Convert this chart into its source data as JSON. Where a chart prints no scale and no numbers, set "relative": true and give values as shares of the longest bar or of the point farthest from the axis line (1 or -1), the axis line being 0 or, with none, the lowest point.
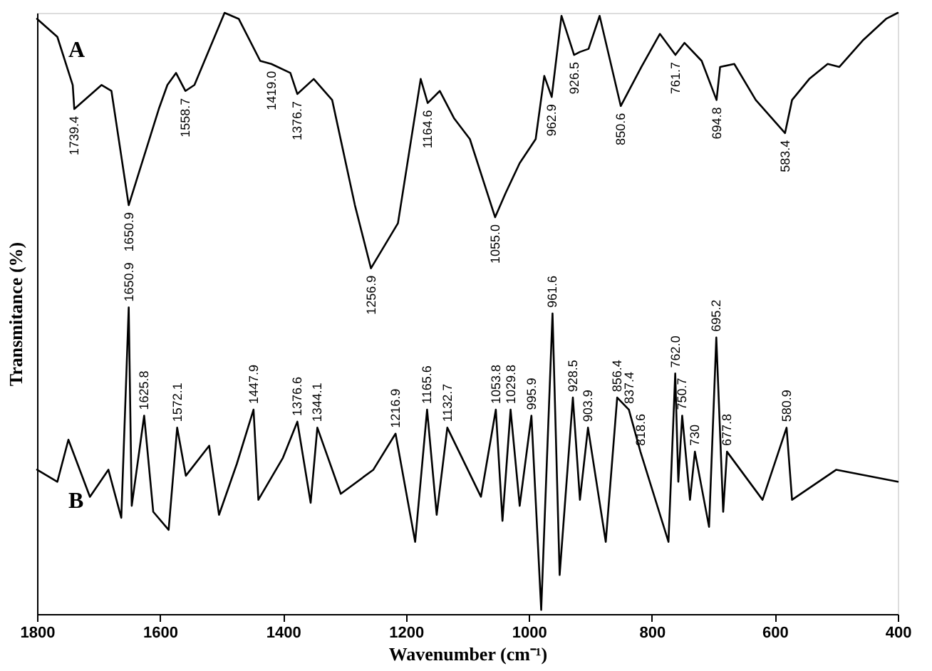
{
  "chart_data": {
    "type": "line",
    "relative": true,
    "xlabel": "Wavenumber (cm⁻¹)",
    "ylabel": "Transmitance (%)",
    "xlim": [
      1800,
      400
    ],
    "xticks": [
      {
        "value": 1800,
        "label": "1800"
      },
      {
        "value": 1600,
        "label": "1600"
      },
      {
        "value": 1400,
        "label": "1400"
      },
      {
        "value": 1200,
        "label": "1200"
      },
      {
        "value": 1000,
        "label": "1000"
      },
      800,
      600,
      400
    ],
    "tick_labels": "x",
    "grid": false,
    "legend": false,
    "marker": "none",
    "line_style": "solid",
    "series": [
      {
        "name": "A",
        "color": "#000000",
        "x": [
          1800,
          1767,
          1742,
          1739.4,
          1695,
          1679,
          1650.9,
          1602,
          1588,
          1574,
          1558.7,
          1544,
          1495,
          1472,
          1437,
          1419,
          1388,
          1376.7,
          1350,
          1320,
          1283,
          1256.9,
          1213,
          1176,
          1164.6,
          1145,
          1122,
          1096,
          1055.0,
          1038,
          1015,
          989,
          975,
          962.9,
          947,
          926.5,
          917,
          903,
          885,
          850.6,
          817,
          787,
          761.7,
          747,
          719,
          694.8,
          689,
          666,
          631,
          583.4,
          572,
          544,
          514,
          495,
          456,
          419,
          400
        ],
        "values": [
          0.99,
          0.96,
          0.88,
          0.84,
          0.88,
          0.87,
          0.68,
          0.84,
          0.88,
          0.9,
          0.87,
          0.88,
          1.0,
          0.99,
          0.92,
          0.915,
          0.9,
          0.865,
          0.89,
          0.855,
          0.68,
          0.575,
          0.65,
          0.89,
          0.85,
          0.87,
          0.825,
          0.79,
          0.66,
          0.7,
          0.75,
          0.79,
          0.895,
          0.86,
          0.995,
          0.93,
          0.935,
          0.94,
          0.995,
          0.845,
          0.91,
          0.965,
          0.93,
          0.95,
          0.92,
          0.855,
          0.91,
          0.915,
          0.855,
          0.8,
          0.855,
          0.89,
          0.915,
          0.91,
          0.955,
          0.99,
          1.0
        ]
      },
      {
        "name": "B",
        "color": "#000000",
        "x": [
          1800,
          1767,
          1749,
          1714,
          1684,
          1663,
          1650.9,
          1646,
          1625.8,
          1611,
          1586,
          1572.1,
          1558,
          1520,
          1504,
          1475,
          1447.9,
          1440,
          1400,
          1376.6,
          1355,
          1344.1,
          1306,
          1253,
          1216.9,
          1185,
          1165.6,
          1150,
          1132.7,
          1078,
          1053.8,
          1043,
          1029.8,
          1015,
          995.9,
          980,
          961.6,
          950,
          928.5,
          917,
          903.9,
          875,
          856.4,
          837.4,
          818.6,
          773,
          762.0,
          757,
          750.7,
          738,
          730,
          707,
          695.2,
          684,
          677.8,
          620,
          580.9,
          572,
          500,
          400
        ],
        "values": [
          0.24,
          0.22,
          0.29,
          0.195,
          0.24,
          0.16,
          0.51,
          0.18,
          0.33,
          0.17,
          0.14,
          0.31,
          0.23,
          0.28,
          0.165,
          0.25,
          0.34,
          0.19,
          0.26,
          0.32,
          0.185,
          0.31,
          0.2,
          0.24,
          0.3,
          0.12,
          0.34,
          0.165,
          0.31,
          0.195,
          0.34,
          0.155,
          0.34,
          0.18,
          0.33,
          0.007,
          0.5,
          0.065,
          0.36,
          0.19,
          0.31,
          0.12,
          0.36,
          0.34,
          0.27,
          0.12,
          0.4,
          0.22,
          0.33,
          0.19,
          0.27,
          0.145,
          0.46,
          0.17,
          0.27,
          0.19,
          0.31,
          0.19,
          0.24,
          0.22
        ]
      }
    ],
    "annotations": [
      {
        "text": "1739.4",
        "x": 1739.4,
        "y": 0.84
      },
      {
        "text": "1650.9",
        "x": 1650.9,
        "y": 0.68
      },
      {
        "text": "1558.7",
        "x": 1558.7,
        "y": 0.87
      },
      {
        "text": "1419.0",
        "x": 1419.0,
        "y": 0.915
      },
      {
        "text": "1376.7",
        "x": 1376.7,
        "y": 0.865
      },
      {
        "text": "1256.9",
        "x": 1256.9,
        "y": 0.575
      },
      {
        "text": "1164.6",
        "x": 1164.6,
        "y": 0.85
      },
      {
        "text": "1055.0",
        "x": 1055.0,
        "y": 0.66
      },
      {
        "text": "962.9",
        "x": 962.9,
        "y": 0.86
      },
      {
        "text": "926.5",
        "x": 926.5,
        "y": 0.93
      },
      {
        "text": "850.6",
        "x": 850.6,
        "y": 0.845
      },
      {
        "text": "761.7",
        "x": 761.7,
        "y": 0.93
      },
      {
        "text": "694.8",
        "x": 694.8,
        "y": 0.855
      },
      {
        "text": "583.4",
        "x": 583.4,
        "y": 0.8
      },
      {
        "text": "1650.9",
        "x": 1650.9,
        "y": 0.51
      },
      {
        "text": "1625.8",
        "x": 1625.8,
        "y": 0.33
      },
      {
        "text": "1572.1",
        "x": 1572.1,
        "y": 0.31
      },
      {
        "text": "1447.9",
        "x": 1447.9,
        "y": 0.34
      },
      {
        "text": "1376.6",
        "x": 1376.6,
        "y": 0.32
      },
      {
        "text": "1344.1",
        "x": 1344.1,
        "y": 0.31
      },
      {
        "text": "1216.9",
        "x": 1216.9,
        "y": 0.3
      },
      {
        "text": "1165.6",
        "x": 1165.6,
        "y": 0.34
      },
      {
        "text": "1132.7",
        "x": 1132.7,
        "y": 0.31
      },
      {
        "text": "1053.8",
        "x": 1053.8,
        "y": 0.34
      },
      {
        "text": "1029.8",
        "x": 1029.8,
        "y": 0.34
      },
      {
        "text": "995.9",
        "x": 995.9,
        "y": 0.33
      },
      {
        "text": "961.6",
        "x": 961.6,
        "y": 0.5
      },
      {
        "text": "928.5",
        "x": 928.5,
        "y": 0.36
      },
      {
        "text": "903.9",
        "x": 903.9,
        "y": 0.31
      },
      {
        "text": "856.4",
        "x": 856.4,
        "y": 0.36
      },
      {
        "text": "837.4",
        "x": 837.4,
        "y": 0.34
      },
      {
        "text": "818.6",
        "x": 818.6,
        "y": 0.27
      },
      {
        "text": "762.0",
        "x": 762.0,
        "y": 0.4
      },
      {
        "text": "750.7",
        "x": 750.7,
        "y": 0.33
      },
      {
        "text": "730",
        "x": 730,
        "y": 0.27
      },
      {
        "text": "695.2",
        "x": 695.2,
        "y": 0.46
      },
      {
        "text": "677.8",
        "x": 677.8,
        "y": 0.27
      },
      {
        "text": "580.9",
        "x": 580.9,
        "y": 0.31
      }
    ]
  }
}
